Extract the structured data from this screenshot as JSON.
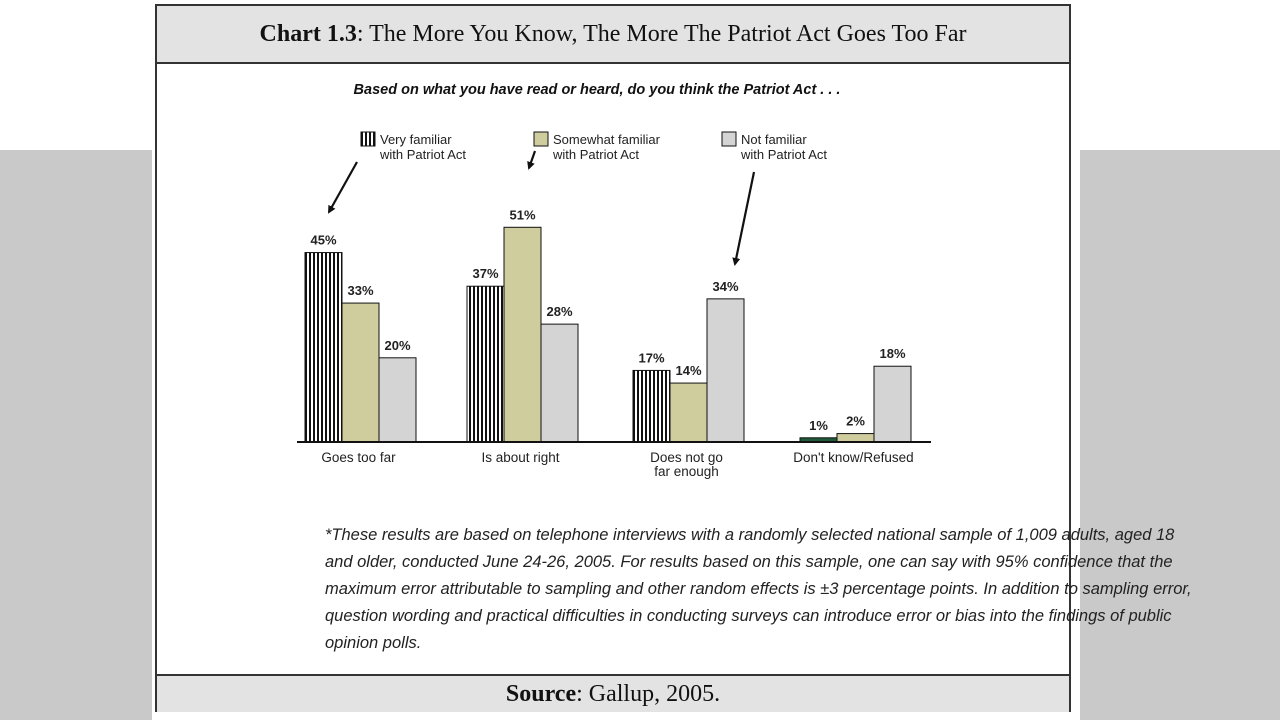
{
  "slide": {
    "title_bold": "Chart 1.3",
    "title_rest": ": The More You Know, The More The Patriot Act Goes Too Far",
    "source_bold": "Source",
    "source_rest": ": Gallup, 2005."
  },
  "chart_data": {
    "type": "bar",
    "title": "Based on what you have read or heard, do you think the Patriot Act . . .",
    "categories": [
      [
        "Goes too far"
      ],
      [
        "Is about right"
      ],
      [
        "Does not go",
        "far enough"
      ],
      [
        "Don't know/Refused"
      ]
    ],
    "series": [
      {
        "name": [
          "Very familiar",
          "with Patriot Act"
        ],
        "values": [
          45,
          37,
          17,
          1
        ],
        "value_labels": [
          "45%",
          "37%",
          "17%",
          "1%"
        ],
        "color": "#ffffff",
        "pattern": "vertical-stripes"
      },
      {
        "name": [
          "Somewhat familiar",
          "with Patriot Act"
        ],
        "values": [
          33,
          51,
          14,
          2
        ],
        "value_labels": [
          "33%",
          "51%",
          "14%",
          "2%"
        ],
        "color": "#cfcc9e"
      },
      {
        "name": [
          "Not familiar",
          "with Patriot Act"
        ],
        "values": [
          20,
          28,
          34,
          18
        ],
        "value_labels": [
          "20%",
          "28%",
          "34%",
          "18%"
        ],
        "color": "#d4d4d4"
      }
    ],
    "ylim": [
      0,
      51
    ],
    "grid": false,
    "legend_position": "top"
  },
  "footnote": "*These results are based on telephone interviews with a randomly selected national sample of 1,009 adults, aged 18 and older, conducted June 24-26, 2005. For results based on this sample, one can say with 95% confidence that the maximum error attributable to sampling and other random effects is ±3 percentage points. In addition to sampling error, question wording and practical difficulties in conducting surveys can introduce error or bias into the findings of public opinion polls."
}
